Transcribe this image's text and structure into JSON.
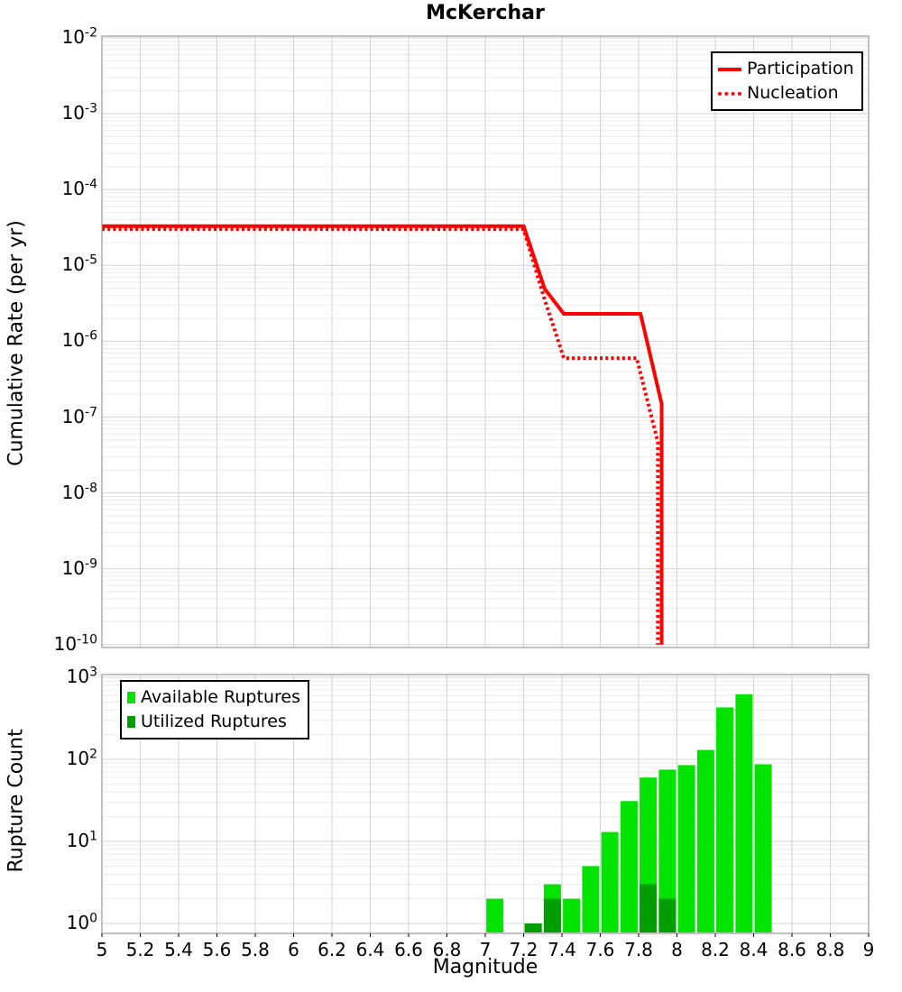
{
  "title": "McKerchar",
  "axes": {
    "x": {
      "label": "Magnitude",
      "min": 5,
      "max": 9,
      "tick_labels": [
        "5",
        "5.2",
        "5.4",
        "5.6",
        "5.8",
        "6",
        "6.2",
        "6.4",
        "6.6",
        "6.8",
        "7",
        "7.2",
        "7.4",
        "7.6",
        "7.8",
        "8",
        "8.2",
        "8.4",
        "8.6",
        "8.8",
        "9"
      ]
    },
    "top_y": {
      "label": "Cumulative Rate (per yr)",
      "scale": "log",
      "tick_exponents": [
        -2,
        -3,
        -4,
        -5,
        -6,
        -7,
        -8,
        -9,
        -10
      ]
    },
    "bottom_y": {
      "label": "Rupture Count",
      "scale": "log",
      "tick_exponents": [
        3,
        2,
        1,
        0
      ]
    }
  },
  "top_legend": {
    "entries": [
      {
        "label": "Participation",
        "style": "solid",
        "color": "#ff0000"
      },
      {
        "label": "Nucleation",
        "style": "dotted",
        "color": "#ff0000"
      }
    ]
  },
  "bottom_legend": {
    "entries": [
      {
        "label": "Available Ruptures",
        "color": "#00e400"
      },
      {
        "label": "Utilized Ruptures",
        "color": "#009e00"
      }
    ]
  },
  "colors": {
    "participation": "#ff0000",
    "nucleation": "#ff0000",
    "available": "#00e400",
    "utilized": "#009e00",
    "grid_major": "#d4d4d4",
    "grid_minor": "#ebebeb",
    "frame": "#999999"
  },
  "chart_data": [
    {
      "type": "line",
      "panel": "top",
      "title": "McKerchar",
      "xlabel": "Magnitude",
      "ylabel": "Cumulative Rate (per yr)",
      "xlim": [
        5,
        9
      ],
      "ylim": [
        1e-10,
        0.01
      ],
      "grid": true,
      "legend_position": "top-right",
      "series": [
        {
          "name": "Participation",
          "style": "solid",
          "color": "#ff0000",
          "points": [
            [
              5.0,
              3.3e-05
            ],
            [
              7.2,
              3.3e-05
            ],
            [
              7.31,
              4.9e-06
            ],
            [
              7.41,
              2.3e-06
            ],
            [
              7.81,
              2.3e-06
            ],
            [
              7.92,
              1.5e-07
            ],
            [
              7.92,
              1e-10
            ]
          ]
        },
        {
          "name": "Nucleation",
          "style": "dotted",
          "color": "#ff0000",
          "points": [
            [
              5.0,
              3e-05
            ],
            [
              7.2,
              3e-05
            ],
            [
              7.31,
              3.5e-06
            ],
            [
              7.41,
              6e-07
            ],
            [
              7.79,
              6e-07
            ],
            [
              7.9,
              4.7e-08
            ],
            [
              7.9,
              1e-10
            ]
          ]
        }
      ]
    },
    {
      "type": "bar",
      "panel": "bottom",
      "xlabel": "Magnitude",
      "ylabel": "Rupture Count",
      "xlim": [
        5,
        9
      ],
      "ylim": [
        1,
        1000
      ],
      "bin_width": 0.1,
      "grid": true,
      "legend_position": "top-left",
      "series": [
        {
          "name": "Available Ruptures",
          "color": "#00e400",
          "bins": [
            [
              7.05,
              2
            ],
            [
              7.25,
              1
            ],
            [
              7.35,
              3
            ],
            [
              7.45,
              2
            ],
            [
              7.55,
              5
            ],
            [
              7.65,
              13
            ],
            [
              7.75,
              31
            ],
            [
              7.85,
              60
            ],
            [
              7.95,
              75
            ],
            [
              8.05,
              85
            ],
            [
              8.15,
              130
            ],
            [
              8.25,
              430
            ],
            [
              8.35,
              620
            ],
            [
              8.45,
              87
            ]
          ]
        },
        {
          "name": "Utilized Ruptures",
          "color": "#009e00",
          "bins": [
            [
              7.25,
              1
            ],
            [
              7.35,
              2
            ],
            [
              7.85,
              3
            ],
            [
              7.95,
              2
            ]
          ]
        }
      ]
    }
  ]
}
